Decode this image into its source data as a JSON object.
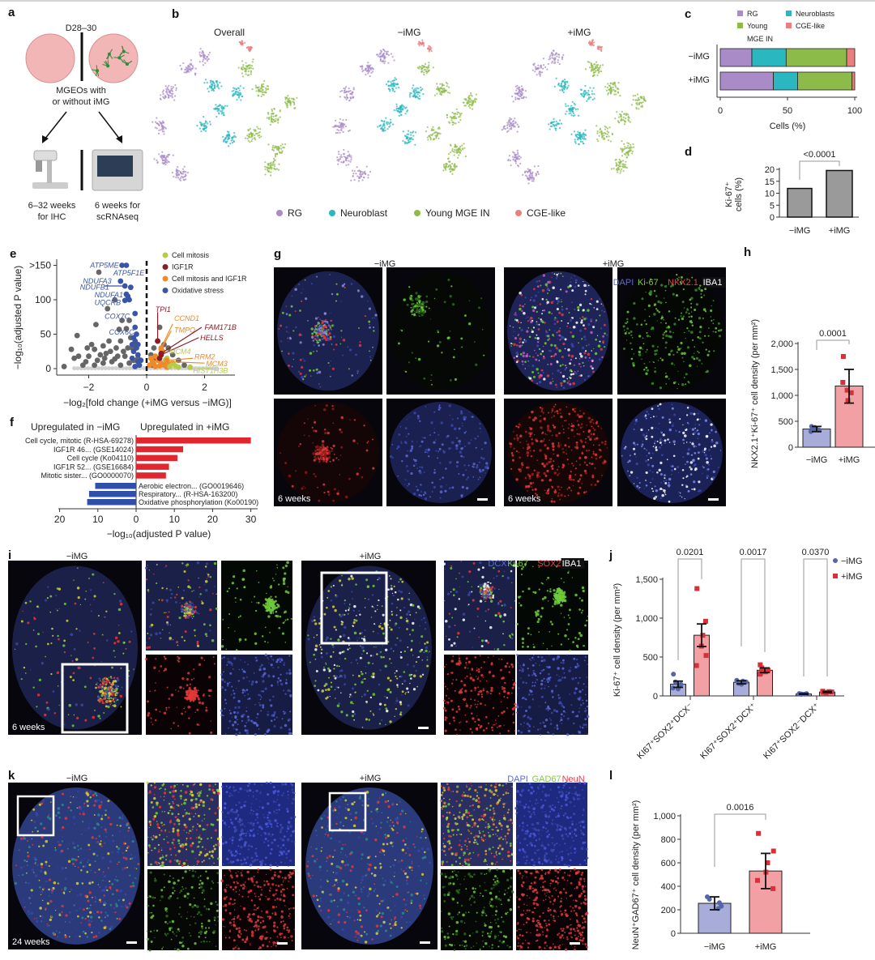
{
  "colors": {
    "rg": "#a98bc8",
    "neuroblast": "#2ab7c0",
    "young_mge": "#8dbb4a",
    "cge": "#e88080",
    "minus": "#5566aa",
    "plus": "#d8303a",
    "minus_fill": "#a8acd8",
    "plus_fill": "#f2a0a4",
    "gray_bar": "#9a9a9a",
    "oxidative": "#3a55a5",
    "mitosis": "#b5cc4a",
    "igf1r": "#8a1c25",
    "mitosis_igf1r": "#ef8a2a",
    "nonsig": "#666666"
  },
  "panel_a": {
    "letter": "a",
    "timepoint": "D28–30",
    "desc_1": "MGEOs with",
    "desc_2": "or without iMG",
    "left_1": "6–32 weeks",
    "left_2": "for IHC",
    "right_1": "6 weeks for",
    "right_2": "scRNAseq"
  },
  "panel_b": {
    "letter": "b",
    "titles": [
      "Overall",
      "−iMG",
      "+iMG"
    ],
    "legend": [
      {
        "label": "RG",
        "color_key": "rg"
      },
      {
        "label": "Neuroblast",
        "color_key": "neuroblast"
      },
      {
        "label": "Young MGE IN",
        "color_key": "young_mge"
      },
      {
        "label": "CGE-like",
        "color_key": "cge"
      }
    ]
  },
  "chart_data": [
    {
      "id": "c",
      "type": "bar",
      "orientation": "horizontal",
      "stacked": true,
      "letter": "c",
      "categories": [
        "−iMG",
        "+iMG"
      ],
      "series": [
        {
          "name": "RG",
          "values": [
            23.5,
            39.5
          ]
        },
        {
          "name": "Neuroblasts",
          "values": [
            25.5,
            18
          ]
        },
        {
          "name": "Young MGE IN",
          "values": [
            45,
            40.5
          ]
        },
        {
          "name": "CGE-like",
          "values": [
            6,
            2
          ]
        }
      ],
      "legend_labels": [
        "RG",
        "Neuroblasts",
        "Young",
        "MGE IN",
        "CGE-like"
      ],
      "xlabel": "Cells (%)",
      "xlim": [
        0,
        100
      ],
      "xticks": [
        "0",
        "50",
        "100"
      ]
    },
    {
      "id": "d",
      "type": "bar",
      "letter": "d",
      "categories": [
        "−iMG",
        "+iMG"
      ],
      "values": [
        12,
        19.5
      ],
      "ylabel_1": "Ki-67⁺",
      "ylabel_2": "cells (%)",
      "ylim": [
        0,
        20
      ],
      "yticks": [
        "0",
        "5",
        "10",
        "15",
        "20"
      ],
      "p_value": "<0.0001"
    },
    {
      "id": "e",
      "type": "scatter",
      "letter": "e",
      "xlabel": "−log₂[fold change (+iMG versus −iMG)]",
      "ylabel": "−log₁₀(adjusted P value)",
      "xlim": [
        -3,
        3
      ],
      "ylim": [
        0,
        155
      ],
      "xticks": [
        "−2",
        "0",
        "2"
      ],
      "yticks": [
        "0",
        "50",
        "100",
        ">150"
      ],
      "legend": [
        {
          "label": "Cell mitosis",
          "color_key": "mitosis"
        },
        {
          "label": "IGF1R",
          "color_key": "igf1r"
        },
        {
          "label": "Cell mitosis and IGF1R",
          "color_key": "mitosis_igf1r"
        },
        {
          "label": "Oxidative stress",
          "color_key": "oxidative"
        }
      ],
      "points": {
        "nonsig": [
          [
            -2.85,
            3
          ],
          [
            -2.6,
            28
          ],
          [
            -2.5,
            15
          ],
          [
            -2.4,
            48
          ],
          [
            -2.35,
            18
          ],
          [
            -2.1,
            10
          ],
          [
            -2.05,
            30
          ],
          [
            -1.9,
            35
          ],
          [
            -1.8,
            28
          ],
          [
            -1.75,
            64
          ],
          [
            -1.65,
            140
          ],
          [
            -1.6,
            20
          ],
          [
            -1.5,
            33
          ],
          [
            -1.45,
            15
          ],
          [
            -1.35,
            87
          ],
          [
            -1.3,
            40
          ],
          [
            -1.25,
            25
          ],
          [
            -1.1,
            100
          ],
          [
            -1.05,
            30
          ],
          [
            -1.0,
            18
          ],
          [
            -0.95,
            57
          ],
          [
            -0.9,
            40
          ],
          [
            -0.85,
            70
          ],
          [
            -0.8,
            25
          ],
          [
            -0.7,
            58
          ],
          [
            -0.6,
            70
          ],
          [
            -0.55,
            45
          ],
          [
            -0.5,
            30
          ],
          [
            -0.45,
            12
          ],
          [
            -0.4,
            35
          ],
          [
            -1.8,
            5
          ],
          [
            -1.5,
            8
          ],
          [
            -1.2,
            10
          ],
          [
            -0.9,
            5
          ],
          [
            -0.6,
            8
          ],
          [
            -0.3,
            15
          ],
          [
            -2.2,
            5
          ],
          [
            0.15,
            20
          ],
          [
            0.25,
            30
          ],
          [
            0.3,
            15
          ],
          [
            0.45,
            60
          ],
          [
            0.6,
            35
          ],
          [
            0.75,
            30
          ],
          [
            0.9,
            20
          ],
          [
            1.1,
            12
          ],
          [
            1.3,
            5
          ],
          [
            0.2,
            5
          ],
          [
            -1.4,
            22
          ],
          [
            -1.1,
            14
          ],
          [
            -0.75,
            18
          ],
          [
            -0.65,
            30
          ],
          [
            -2.0,
            18
          ],
          [
            -1.7,
            12
          ]
        ],
        "oxidative": [
          [
            -0.45,
            45
          ],
          [
            -0.4,
            40
          ],
          [
            -0.35,
            30
          ],
          [
            -0.3,
            20
          ],
          [
            -0.3,
            10
          ],
          [
            -0.25,
            5
          ],
          [
            -0.45,
            25
          ],
          [
            -0.5,
            15
          ],
          [
            -0.35,
            50
          ],
          [
            -0.4,
            3
          ],
          [
            -0.2,
            12
          ],
          [
            -0.6,
            100
          ],
          [
            -0.65,
            105
          ],
          [
            -0.55,
            118
          ],
          [
            -0.3,
            35
          ],
          [
            -0.5,
            35
          ]
        ],
        "mitosis_igf1r": [
          [
            0.1,
            5
          ],
          [
            0.2,
            10
          ],
          [
            0.3,
            3
          ],
          [
            0.4,
            12
          ],
          [
            0.5,
            8
          ],
          [
            0.6,
            5
          ],
          [
            0.7,
            2
          ],
          [
            0.3,
            18
          ],
          [
            0.15,
            15
          ],
          [
            0.55,
            25
          ],
          [
            0.8,
            6
          ],
          [
            0.25,
            7
          ],
          [
            0.45,
            4
          ]
        ],
        "mitosis": [
          [
            0.8,
            3
          ],
          [
            1.0,
            4
          ],
          [
            1.1,
            2
          ],
          [
            0.9,
            8
          ],
          [
            1.5,
            2
          ],
          [
            0.65,
            12
          ]
        ],
        "igf1r": [
          [
            0.5,
            20
          ],
          [
            0.38,
            40
          ],
          [
            0.45,
            15
          ]
        ]
      },
      "genes": [
        {
          "name": "ATP5ME",
          "x": -0.85,
          "y": 150,
          "group": "oxidative",
          "label_at": [
            -1.95,
            150
          ]
        },
        {
          "name": "ATP5F1E",
          "x": -0.7,
          "y": 150,
          "group": "oxidative",
          "label_at": [
            -1.15,
            139
          ]
        },
        {
          "name": "NDUFA3",
          "x": -0.9,
          "y": 127,
          "group": "oxidative",
          "label_at": [
            -2.2,
            127
          ]
        },
        {
          "name": "NDUFB1",
          "x": -0.75,
          "y": 120,
          "group": "oxidative",
          "label_at": [
            -2.3,
            118
          ],
          "arrow": true
        },
        {
          "name": "NDUFA1",
          "x": -0.7,
          "y": 108,
          "group": "oxidative",
          "label_at": [
            -1.8,
            107
          ]
        },
        {
          "name": "UQCRB",
          "x": -0.75,
          "y": 99,
          "group": "oxidative",
          "label_at": [
            -1.8,
            96
          ]
        },
        {
          "name": "COX7C",
          "x": -0.4,
          "y": 80,
          "group": "oxidative",
          "label_at": [
            -1.45,
            76
          ]
        },
        {
          "name": "COX6C",
          "x": -0.4,
          "y": 60,
          "group": "oxidative",
          "label_at": [
            -1.3,
            53
          ]
        },
        {
          "name": "TPI1",
          "x": 0.38,
          "y": 40,
          "group": "igf1r",
          "label_at": [
            0.3,
            86
          ],
          "arrow_to": [
            0.38,
            82
          ]
        },
        {
          "name": "CCND1",
          "x": 0.5,
          "y": 30,
          "group": "mitosis_igf1r",
          "label_at": [
            0.95,
            73
          ],
          "arrow_to": [
            0.9,
            65
          ]
        },
        {
          "name": "TMPO",
          "x": 0.5,
          "y": 28,
          "group": "mitosis_igf1r",
          "label_at": [
            0.95,
            56
          ],
          "arrow_to": [
            0.85,
            55
          ]
        },
        {
          "name": "FAM171B",
          "x": 0.5,
          "y": 22,
          "group": "igf1r",
          "label_at": [
            2.0,
            60
          ],
          "arrow_to": [
            1.9,
            60
          ]
        },
        {
          "name": "HELLS",
          "x": 0.5,
          "y": 20,
          "group": "igf1r",
          "label_at": [
            1.85,
            45
          ],
          "arrow_to": [
            1.8,
            45
          ]
        },
        {
          "name": "MCM4",
          "x": 0.7,
          "y": 15,
          "group": "mitosis",
          "label_at": [
            0.78,
            25
          ]
        },
        {
          "name": "RRM2",
          "x": 0.7,
          "y": 12,
          "group": "mitosis_igf1r",
          "label_at": [
            1.65,
            17
          ],
          "arrow_to": [
            1.6,
            15
          ]
        },
        {
          "name": "MCM3",
          "x": 0.7,
          "y": 10,
          "group": "mitosis_igf1r",
          "label_at": [
            2.05,
            7
          ],
          "arrow_to": [
            2.0,
            8
          ]
        },
        {
          "name": "HIST1H3B",
          "x": 1.5,
          "y": 2,
          "group": "mitosis",
          "label_at": [
            1.6,
            -3
          ]
        }
      ]
    },
    {
      "id": "f",
      "type": "bar",
      "orientation": "horizontal",
      "letter": "f",
      "header_left": "Upregulated in −iMG",
      "header_right": "Upregulated in +iMG",
      "xlabel": "−log₁₀(adjusted P value)",
      "xticks_left": [
        "20",
        "10"
      ],
      "xticks_right": [
        "0",
        "10",
        "20",
        "30"
      ],
      "up_plus": [
        {
          "label": "Cell cycle, mitotic (R-HSA-69278)",
          "value": 30
        },
        {
          "label": "IGF1R 46... (GSE14024)",
          "value": 12.3
        },
        {
          "label": "Cell cycle (Ko04110)",
          "value": 10.8
        },
        {
          "label": "IGF1R 52... (GSE16684)",
          "value": 8.6
        },
        {
          "label": "Mitotic sister... (GO0000070)",
          "value": 7.8
        }
      ],
      "up_minus": [
        {
          "label": "Aerobic electron... (GO0019646)",
          "value": 10.7
        },
        {
          "label": "Respiratory... (R-HSA-163200)",
          "value": 12.3
        },
        {
          "label": "Oxidative phosphorylation (Ko00190)",
          "value": 12.8
        }
      ]
    },
    {
      "id": "h",
      "type": "bar",
      "letter": "h",
      "categories": [
        "−iMG",
        "+iMG"
      ],
      "values": [
        350,
        1180
      ],
      "error": [
        [
          300,
          400
        ],
        [
          850,
          1500
        ]
      ],
      "points": [
        [
          300,
          330,
          360,
          400,
          380,
          340
        ],
        [
          1750,
          1250,
          1100,
          1050,
          900
        ]
      ],
      "ylabel": "NKX2.1⁺Ki-67⁺ cell density (per mm²)",
      "ylim": [
        0,
        2000
      ],
      "yticks": [
        "0",
        "500",
        "1,000",
        "1,500",
        "2,000"
      ],
      "p_value": "0.0001"
    },
    {
      "id": "j",
      "type": "bar",
      "letter": "j",
      "categories": [
        "KI67⁺SOX2⁺DCX⁻",
        "KI67⁺SOX2⁺DCX⁺",
        "KI67⁺SOX2⁻DCX⁺"
      ],
      "series": [
        {
          "name": "−iMG",
          "values": [
            150,
            175,
            25
          ],
          "error": [
            [
              110,
              190
            ],
            [
              155,
              195
            ],
            [
              20,
              30
            ]
          ],
          "points": [
            [
              280,
              180,
              150,
              120,
              100,
              90
            ],
            [
              200,
              190,
              180,
              170,
              160,
              150
            ],
            [
              30,
              25,
              20,
              30,
              22
            ]
          ]
        },
        {
          "name": "+iMG",
          "values": [
            780,
            330,
            50
          ],
          "error": [
            [
              635,
              925
            ],
            [
              300,
              360
            ],
            [
              42,
              58
            ]
          ],
          "points": [
            [
              1380,
              960,
              780,
              640,
              520,
              390
            ],
            [
              400,
              360,
              330,
              310,
              290,
              280
            ],
            [
              60,
              50,
              45,
              55,
              40
            ]
          ]
        }
      ],
      "ylabel": "Ki-67⁺ cell density (per mm²)",
      "ylim": [
        0,
        1500
      ],
      "yticks": [
        "0",
        "500",
        "1,000",
        "1,500"
      ],
      "p_values": [
        "0.0201",
        "0.0017",
        "0.0370"
      ]
    },
    {
      "id": "l",
      "type": "bar",
      "letter": "l",
      "categories": [
        "−iMG",
        "+iMG"
      ],
      "values": [
        255,
        530
      ],
      "error": [
        [
          200,
          310
        ],
        [
          380,
          680
        ]
      ],
      "points": [
        [
          310,
          290,
          260,
          230,
          210
        ],
        [
          850,
          700,
          600,
          520,
          450,
          380
        ]
      ],
      "ylabel": "NeuN⁺GAD67⁺ cell density (per mm²)",
      "ylim": [
        0,
        1000
      ],
      "yticks": [
        "0",
        "200",
        "400",
        "600",
        "800",
        "1,000"
      ],
      "p_value": "0.0016"
    }
  ],
  "panel_g": {
    "letter": "g",
    "minus": "−iMG",
    "plus": "+iMG",
    "channels": [
      {
        "label": "DAPI",
        "color": "#5a6ad8"
      },
      {
        "label": "Ki-67",
        "color": "#7ccc3a"
      },
      {
        "label": "NKX2.1",
        "color": "#e8404a"
      },
      {
        "label": "IBA1",
        "color": "#ffffff"
      }
    ],
    "timepoint": "6 weeks"
  },
  "panel_i": {
    "letter": "i",
    "minus": "−iMG",
    "plus": "+iMG",
    "channels": [
      {
        "label": "DCX",
        "color": "#5a6ad8"
      },
      {
        "label": "Ki-67",
        "color": "#7ccc3a"
      },
      {
        "label": "SOX2",
        "color": "#e8404a"
      },
      {
        "label": "IBA1",
        "color": "#ffffff"
      }
    ],
    "timepoint": "6 weeks"
  },
  "panel_k": {
    "letter": "k",
    "minus": "−iMG",
    "plus": "+iMG",
    "channels": [
      {
        "label": "DAPI",
        "color": "#5a6ad8"
      },
      {
        "label": "GAD67",
        "color": "#7ccc3a"
      },
      {
        "label": "NeuN",
        "color": "#e8404a"
      }
    ],
    "timepoint": "24 weeks"
  }
}
